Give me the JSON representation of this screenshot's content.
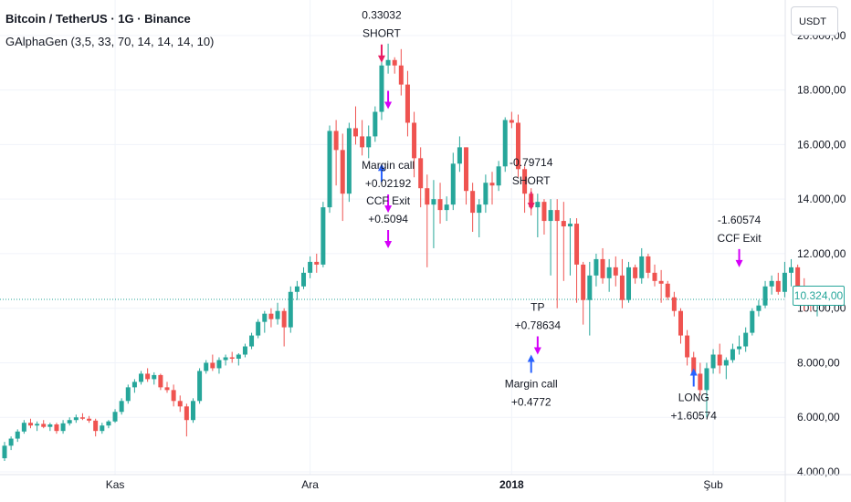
{
  "header": {
    "title": "Bitcoin / TetherUS · 1G · Binance",
    "indicator": "GAlphaGen (3,5, 33, 70, 14, 14, 14, 10)"
  },
  "currency_button": "USDT",
  "last_price_badge": "10.324,00",
  "colors": {
    "up": "#26a69a",
    "down": "#ef5350",
    "short_arrow": "#e91e63",
    "long_arrow": "#2962ff",
    "exit_arrow": "#d500f9",
    "grid": "#f0f3fa",
    "text": "#131722"
  },
  "chart_data": {
    "type": "candlestick",
    "symbol": "BTC/USDT",
    "y_axis": {
      "ticks": [
        4000,
        6000,
        8000,
        10000,
        12000,
        14000,
        16000,
        18000,
        20000
      ],
      "tick_labels": [
        "4.000,00",
        "6.000,00",
        "8.000,00",
        "10.000,00",
        "12.000,00",
        "14.000,00",
        "16.000,00",
        "18.000,00",
        "20.000,00"
      ],
      "range": [
        3900,
        21300
      ]
    },
    "x_axis": {
      "labels": [
        {
          "text": "Kas",
          "index": 17,
          "bold": false
        },
        {
          "text": "Ara",
          "index": 47,
          "bold": false
        },
        {
          "text": "2018",
          "index": 78,
          "bold": true
        },
        {
          "text": "Şub",
          "index": 109,
          "bold": false
        }
      ]
    },
    "candles": [
      [
        4500,
        5100,
        4400,
        4960
      ],
      [
        4960,
        5300,
        4800,
        5220
      ],
      [
        5220,
        5560,
        5100,
        5480
      ],
      [
        5480,
        5900,
        5400,
        5800
      ],
      [
        5800,
        5950,
        5600,
        5700
      ],
      [
        5700,
        5850,
        5500,
        5760
      ],
      [
        5760,
        5900,
        5600,
        5650
      ],
      [
        5650,
        5800,
        5500,
        5740
      ],
      [
        5740,
        5800,
        5400,
        5500
      ],
      [
        5500,
        5900,
        5400,
        5780
      ],
      [
        5780,
        6000,
        5700,
        5900
      ],
      [
        5900,
        6100,
        5800,
        6000
      ],
      [
        6000,
        6150,
        5900,
        5950
      ],
      [
        5950,
        6050,
        5800,
        5880
      ],
      [
        5880,
        5950,
        5300,
        5500
      ],
      [
        5500,
        5800,
        5400,
        5700
      ],
      [
        5700,
        5900,
        5600,
        5850
      ],
      [
        5850,
        6300,
        5800,
        6200
      ],
      [
        6200,
        6700,
        6100,
        6600
      ],
      [
        6600,
        7200,
        6500,
        7100
      ],
      [
        7100,
        7400,
        6900,
        7300
      ],
      [
        7300,
        7700,
        7200,
        7600
      ],
      [
        7600,
        7800,
        7300,
        7400
      ],
      [
        7400,
        7650,
        7200,
        7550
      ],
      [
        7550,
        7600,
        7000,
        7100
      ],
      [
        7100,
        7300,
        6900,
        7000
      ],
      [
        7000,
        7200,
        6400,
        6600
      ],
      [
        6600,
        6800,
        6200,
        6400
      ],
      [
        6400,
        6500,
        5300,
        5900
      ],
      [
        5900,
        6700,
        5800,
        6600
      ],
      [
        6600,
        7800,
        6500,
        7700
      ],
      [
        7700,
        8100,
        7600,
        8000
      ],
      [
        8000,
        8300,
        7700,
        7800
      ],
      [
        7800,
        8200,
        7600,
        8100
      ],
      [
        8100,
        8300,
        7900,
        8200
      ],
      [
        8200,
        8400,
        8000,
        8150
      ],
      [
        8150,
        8350,
        7900,
        8300
      ],
      [
        8300,
        8700,
        8200,
        8600
      ],
      [
        8600,
        9100,
        8500,
        9000
      ],
      [
        9000,
        9600,
        8900,
        9500
      ],
      [
        9500,
        9900,
        9100,
        9800
      ],
      [
        9800,
        10000,
        9300,
        9600
      ],
      [
        9600,
        10200,
        9400,
        9900
      ],
      [
        9900,
        10000,
        8600,
        9300
      ],
      [
        9300,
        10800,
        9100,
        10600
      ],
      [
        10600,
        11000,
        10300,
        10800
      ],
      [
        10800,
        11500,
        10700,
        11300
      ],
      [
        11300,
        11900,
        11100,
        11700
      ],
      [
        11700,
        12000,
        11300,
        11600
      ],
      [
        11600,
        13900,
        11500,
        13700
      ],
      [
        13700,
        16700,
        13500,
        16500
      ],
      [
        16500,
        16900,
        14500,
        15800
      ],
      [
        15800,
        16400,
        13200,
        14200
      ],
      [
        14200,
        16800,
        13900,
        16600
      ],
      [
        16600,
        17400,
        16000,
        16300
      ],
      [
        16300,
        16900,
        15600,
        15900
      ],
      [
        15900,
        16700,
        15500,
        16300
      ],
      [
        16300,
        17400,
        16100,
        17200
      ],
      [
        17200,
        19300,
        16900,
        18900
      ],
      [
        18900,
        19700,
        18600,
        19100
      ],
      [
        19100,
        19200,
        18600,
        18900
      ],
      [
        18900,
        19500,
        17800,
        18200
      ],
      [
        18200,
        18700,
        16300,
        16800
      ],
      [
        16800,
        17200,
        14800,
        15500
      ],
      [
        15500,
        15900,
        13700,
        14400
      ],
      [
        14400,
        14900,
        11500,
        13800
      ],
      [
        13800,
        14700,
        12200,
        14000
      ],
      [
        14000,
        14600,
        13100,
        13600
      ],
      [
        13600,
        14100,
        13200,
        13800
      ],
      [
        13800,
        15700,
        13600,
        15300
      ],
      [
        15300,
        16300,
        15000,
        15900
      ],
      [
        15900,
        15900,
        13800,
        14300
      ],
      [
        14300,
        14600,
        12800,
        13500
      ],
      [
        13500,
        14000,
        12600,
        13800
      ],
      [
        13800,
        14900,
        13500,
        14600
      ],
      [
        14600,
        15000,
        13800,
        14500
      ],
      [
        14500,
        15400,
        14300,
        15200
      ],
      [
        15200,
        17000,
        15000,
        16900
      ],
      [
        16900,
        17200,
        16600,
        16800
      ],
      [
        16800,
        17100,
        14800,
        15100
      ],
      [
        15100,
        15200,
        13500,
        14200
      ],
      [
        14200,
        14400,
        13400,
        13700
      ],
      [
        13700,
        14200,
        12600,
        13900
      ],
      [
        13900,
        14000,
        12700,
        13200
      ],
      [
        13200,
        14000,
        11200,
        13600
      ],
      [
        13600,
        14000,
        10000,
        13200
      ],
      [
        13200,
        13900,
        11000,
        13000
      ],
      [
        13000,
        13300,
        11200,
        13100
      ],
      [
        13100,
        13300,
        10200,
        11600
      ],
      [
        11600,
        11700,
        9400,
        10300
      ],
      [
        10300,
        11700,
        9000,
        11200
      ],
      [
        11200,
        12000,
        10800,
        11800
      ],
      [
        11800,
        12200,
        10900,
        11100
      ],
      [
        11100,
        11800,
        10600,
        11500
      ],
      [
        11500,
        11900,
        10800,
        11200
      ],
      [
        11200,
        11800,
        10000,
        10300
      ],
      [
        10300,
        11700,
        10200,
        11500
      ],
      [
        11500,
        11600,
        10900,
        11100
      ],
      [
        11100,
        12200,
        10900,
        11900
      ],
      [
        11900,
        12000,
        11100,
        11300
      ],
      [
        11300,
        11600,
        10800,
        11000
      ],
      [
        11000,
        11400,
        10200,
        10900
      ],
      [
        10900,
        11000,
        10300,
        10400
      ],
      [
        10400,
        10600,
        9700,
        9900
      ],
      [
        9900,
        10000,
        8700,
        9000
      ],
      [
        9000,
        9200,
        7900,
        8200
      ],
      [
        8200,
        8400,
        7400,
        7600
      ],
      [
        7600,
        8000,
        6800,
        7000
      ],
      [
        7000,
        8000,
        6000,
        7800
      ],
      [
        7800,
        8500,
        7600,
        8300
      ],
      [
        8300,
        8700,
        7600,
        7900
      ],
      [
        7900,
        8200,
        7400,
        8100
      ],
      [
        8100,
        8700,
        8000,
        8500
      ],
      [
        8500,
        9000,
        8300,
        8600
      ],
      [
        8600,
        9300,
        8400,
        9100
      ],
      [
        9100,
        10000,
        9000,
        9900
      ],
      [
        9900,
        10300,
        9700,
        10100
      ],
      [
        10100,
        11000,
        10000,
        10800
      ],
      [
        10800,
        11200,
        10500,
        11000
      ],
      [
        11000,
        11300,
        10500,
        10600
      ],
      [
        10600,
        11700,
        10400,
        11300
      ],
      [
        11300,
        11800,
        10800,
        11500
      ],
      [
        11500,
        11600,
        10600,
        10800
      ],
      [
        10800,
        11100,
        9900,
        10500
      ],
      [
        10500,
        10800,
        9900,
        10200
      ],
      [
        10200,
        10500,
        9700,
        10324
      ]
    ],
    "annotations": [
      {
        "type": "short",
        "index": 58,
        "price": 19000,
        "label_lines": [
          "0.33032",
          "SHORT"
        ]
      },
      {
        "type": "exit",
        "index": 59,
        "price": 17300,
        "label_lines": []
      },
      {
        "type": "long",
        "index": 58,
        "price": 15300,
        "label_lines": []
      },
      {
        "type": "exit",
        "index": 59,
        "price": 13500,
        "label_lines": [
          "Margin call",
          "+0.02192"
        ]
      },
      {
        "type": "exit",
        "index": 59,
        "price": 12200,
        "label_lines": [
          "CCF Exit",
          "+0.5094"
        ]
      },
      {
        "type": "short",
        "index": 81,
        "price": 13600,
        "label_lines": [
          "-0.79714",
          "SHORT"
        ]
      },
      {
        "type": "long",
        "index": 81,
        "price": 8300,
        "label_lines": [
          "Margin call",
          "+0.4772"
        ]
      },
      {
        "type": "exit",
        "index": 82,
        "price": 8300,
        "label_lines": [
          "TP",
          "+0.78634"
        ]
      },
      {
        "type": "long",
        "index": 106,
        "price": 7800,
        "label_lines": [
          "LONG",
          "+1.60574"
        ]
      },
      {
        "type": "exit",
        "index": 113,
        "price": 11500,
        "label_lines": [
          "-1.60574",
          "CCF Exit"
        ]
      }
    ],
    "last_price": 10324
  }
}
